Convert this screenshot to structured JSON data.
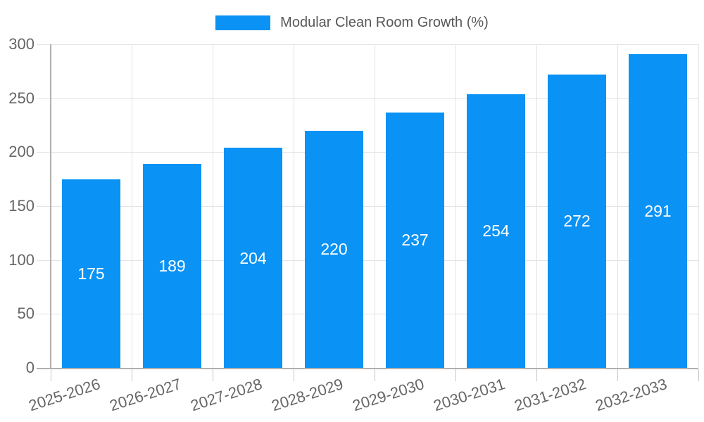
{
  "chart_data": {
    "type": "bar",
    "title": "Modular Clean Room Growth (%)",
    "categories": [
      "2025-2026",
      "2026-2027",
      "2027-2028",
      "2028-2029",
      "2029-2030",
      "2030-2031",
      "2031-2032",
      "2032-2033"
    ],
    "values": [
      175,
      189,
      204,
      220,
      237,
      254,
      272,
      291
    ],
    "value_labels": [
      "175",
      "189",
      "204",
      "220",
      "237",
      "254",
      "272",
      "291"
    ],
    "xlabel": "",
    "ylabel": "",
    "ylim": [
      0,
      300
    ],
    "yticks": [
      0,
      50,
      100,
      150,
      200,
      250,
      300
    ],
    "grid": true,
    "legend_position": "top",
    "x_tick_rotation_deg": -18
  },
  "colors": {
    "bar": "#0a92f5",
    "value_label": "#ffffff",
    "grid": "#e3e3e3",
    "axis": "#b0b0b0",
    "tick": "#c6c6c6",
    "tick_label": "#666666",
    "legend_text": "#58585a",
    "background": "#ffffff"
  }
}
